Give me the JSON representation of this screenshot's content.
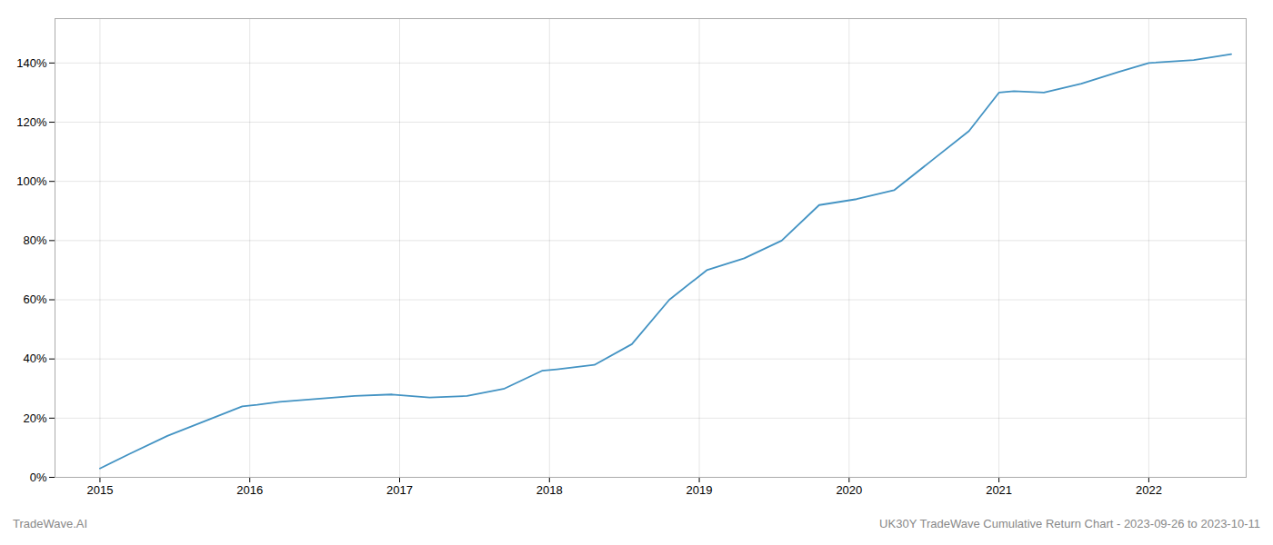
{
  "chart_data": {
    "type": "line",
    "title": "UK30Y TradeWave Cumulative Return Chart - 2023-09-26 to 2023-10-11",
    "annotations": [
      "TradeWave.AI"
    ],
    "x": [
      2015.0,
      2015.2,
      2015.45,
      2015.7,
      2015.95,
      2016.05,
      2016.2,
      2016.45,
      2016.7,
      2016.95,
      2017.2,
      2017.45,
      2017.7,
      2017.95,
      2018.05,
      2018.3,
      2018.55,
      2018.8,
      2019.05,
      2019.3,
      2019.55,
      2019.8,
      2020.05,
      2020.3,
      2020.55,
      2020.8,
      2021.0,
      2021.1,
      2021.3,
      2021.55,
      2021.8,
      2022.0,
      2022.3,
      2022.55
    ],
    "values": [
      3,
      8,
      14,
      19,
      24,
      24.5,
      25.5,
      26.5,
      27.5,
      28,
      27,
      27.5,
      30,
      36,
      36.5,
      38,
      45,
      60,
      70,
      74,
      80,
      92,
      94,
      97,
      107,
      117,
      130,
      130.5,
      130,
      133,
      137,
      140,
      141,
      143
    ],
    "color": "#4393c3",
    "xlim": [
      2014.7,
      2022.65
    ],
    "xticks": [
      2015,
      2016,
      2017,
      2018,
      2019,
      2020,
      2021,
      2022
    ],
    "ylim": [
      0,
      155
    ],
    "yticks": [
      {
        "value": 0,
        "label": "0%"
      },
      {
        "value": 20,
        "label": "20%"
      },
      {
        "value": 40,
        "label": "40%"
      },
      {
        "value": 60,
        "label": "60%"
      },
      {
        "value": 80,
        "label": "80%"
      },
      {
        "value": 100,
        "label": "100%"
      },
      {
        "value": 120,
        "label": "120%"
      },
      {
        "value": 140,
        "label": "140%"
      }
    ],
    "grid": true
  }
}
